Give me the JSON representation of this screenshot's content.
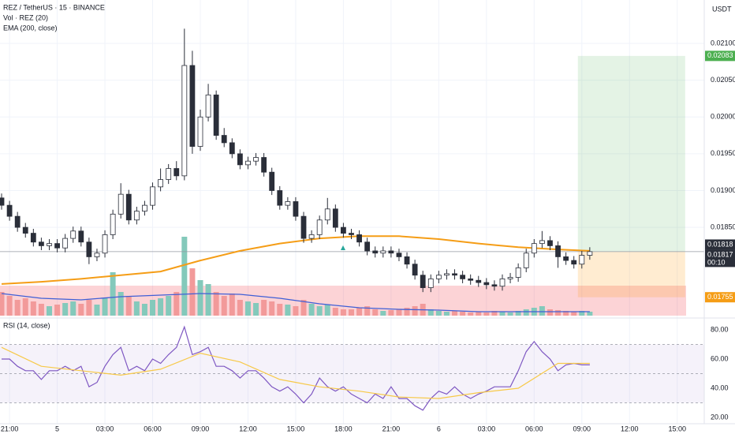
{
  "chart_data": {
    "type": "candlestick",
    "title": "REZ / TetherUS · 15 · BINANCE",
    "quote": "USDT",
    "x": [
      -0.5,
      0,
      0.5,
      1,
      1.5,
      2,
      2.5,
      3,
      3.5,
      4,
      4.5,
      5,
      5.5,
      6,
      6.5,
      7,
      7.5,
      8,
      8.5,
      9,
      9.5,
      10,
      10.5,
      11,
      11.5,
      12,
      12.5,
      13,
      13.5,
      14,
      14.5,
      15,
      15.5,
      16,
      16.5,
      17,
      17.5,
      18,
      18.5,
      19,
      19.5,
      20,
      20.5,
      21,
      21.5,
      22,
      22.5,
      23,
      23.5,
      24,
      24.5,
      25,
      25.5,
      26,
      26.5,
      27,
      27.5,
      28,
      28.5,
      29,
      29.5,
      30,
      30.5,
      31,
      31.5,
      32,
      32.5,
      33,
      33.5,
      34,
      34.5,
      35,
      35.5,
      36,
      36.5
    ],
    "open": [
      0.0189,
      0.0188,
      0.01865,
      0.0185,
      0.01842,
      0.0183,
      0.01825,
      0.01828,
      0.01822,
      0.01835,
      0.01845,
      0.0183,
      0.0181,
      0.01815,
      0.0184,
      0.01868,
      0.01895,
      0.0186,
      0.01872,
      0.0188,
      0.01905,
      0.01915,
      0.0193,
      0.0192,
      0.0207,
      0.0196,
      0.02,
      0.0203,
      0.01975,
      0.01965,
      0.0195,
      0.01935,
      0.0194,
      0.01945,
      0.01925,
      0.019,
      0.0188,
      0.01885,
      0.01865,
      0.01835,
      0.0184,
      0.0186,
      0.01875,
      0.0185,
      0.01842,
      0.0184,
      0.0183,
      0.01818,
      0.01815,
      0.01818,
      0.01815,
      0.0181,
      0.018,
      0.01785,
      0.01768,
      0.0178,
      0.01785,
      0.01787,
      0.01785,
      0.0178,
      0.01778,
      0.01775,
      0.01772,
      0.0177,
      0.0178,
      0.01782,
      0.01795,
      0.01815,
      0.01828,
      0.01832,
      0.01825,
      0.0181,
      0.01805,
      0.018,
      0.01812
    ],
    "high": [
      0.01896,
      0.01886,
      0.01871,
      0.01856,
      0.01848,
      0.01836,
      0.01834,
      0.01834,
      0.01841,
      0.01851,
      0.01851,
      0.01836,
      0.01821,
      0.01846,
      0.01874,
      0.0191,
      0.01901,
      0.01878,
      0.01886,
      0.01911,
      0.0193,
      0.01936,
      0.0194,
      0.0212,
      0.0209,
      0.0201,
      0.02045,
      0.02036,
      0.01985,
      0.01971,
      0.01956,
      0.01946,
      0.01951,
      0.01951,
      0.01931,
      0.01906,
      0.01891,
      0.01891,
      0.01871,
      0.01846,
      0.01866,
      0.0189,
      0.01881,
      0.01856,
      0.01848,
      0.01846,
      0.01836,
      0.01824,
      0.01824,
      0.01824,
      0.01821,
      0.01816,
      0.01806,
      0.01791,
      0.01786,
      0.01791,
      0.01793,
      0.01793,
      0.01791,
      0.01786,
      0.01784,
      0.01781,
      0.01778,
      0.01786,
      0.01788,
      0.01801,
      0.01821,
      0.01834,
      0.01845,
      0.01838,
      0.01831,
      0.01816,
      0.01811,
      0.01818,
      0.01823
    ],
    "low": [
      0.01874,
      0.01859,
      0.01844,
      0.01836,
      0.01824,
      0.01819,
      0.01819,
      0.01816,
      0.01816,
      0.01829,
      0.01824,
      0.018,
      0.01804,
      0.01809,
      0.01834,
      0.01862,
      0.01854,
      0.01854,
      0.01866,
      0.01874,
      0.01899,
      0.01909,
      0.01914,
      0.01914,
      0.0195,
      0.01954,
      0.01994,
      0.01969,
      0.01959,
      0.01944,
      0.01929,
      0.01929,
      0.01934,
      0.01919,
      0.01894,
      0.01874,
      0.01874,
      0.01859,
      0.01829,
      0.01829,
      0.01834,
      0.01854,
      0.01844,
      0.01836,
      0.01834,
      0.01824,
      0.01812,
      0.01809,
      0.01809,
      0.01809,
      0.01804,
      0.01794,
      0.01779,
      0.01762,
      0.01762,
      0.01774,
      0.01779,
      0.01779,
      0.01774,
      0.01772,
      0.01769,
      0.01766,
      0.01764,
      0.01764,
      0.01774,
      0.01776,
      0.01789,
      0.01809,
      0.01822,
      0.01819,
      0.01795,
      0.01799,
      0.01794,
      0.01794,
      0.01806
    ],
    "close": [
      0.0188,
      0.01865,
      0.0185,
      0.01842,
      0.0183,
      0.01825,
      0.01828,
      0.01822,
      0.01835,
      0.01845,
      0.0183,
      0.0181,
      0.01815,
      0.0184,
      0.01868,
      0.01895,
      0.0186,
      0.01872,
      0.0188,
      0.01905,
      0.01915,
      0.0193,
      0.0192,
      0.0207,
      0.0196,
      0.02,
      0.0203,
      0.01975,
      0.01965,
      0.0195,
      0.01935,
      0.0194,
      0.01945,
      0.01925,
      0.019,
      0.0188,
      0.01885,
      0.01865,
      0.01835,
      0.0184,
      0.0186,
      0.01875,
      0.0185,
      0.01842,
      0.0184,
      0.0183,
      0.01818,
      0.01815,
      0.01818,
      0.01815,
      0.0181,
      0.018,
      0.01785,
      0.01768,
      0.0178,
      0.01785,
      0.01787,
      0.01785,
      0.0178,
      0.01778,
      0.01775,
      0.01772,
      0.0177,
      0.0178,
      0.01782,
      0.01795,
      0.01815,
      0.01828,
      0.01832,
      0.01825,
      0.0181,
      0.01805,
      0.018,
      0.01812,
      0.01817
    ],
    "up_color": "#ffffff",
    "down_color": "#2a2e39",
    "xlim": [
      -0.6,
      43.7
    ],
    "xticks": [
      {
        "value": 0,
        "label": "21:00"
      },
      {
        "value": 3,
        "label": "5"
      },
      {
        "value": 6,
        "label": "03:00"
      },
      {
        "value": 9,
        "label": "06:00"
      },
      {
        "value": 12,
        "label": "09:00"
      },
      {
        "value": 15,
        "label": "12:00"
      },
      {
        "value": 18,
        "label": "15:00"
      },
      {
        "value": 21,
        "label": "18:00"
      },
      {
        "value": 24,
        "label": "21:00"
      },
      {
        "value": 27,
        "label": "6"
      },
      {
        "value": 30,
        "label": "03:00"
      },
      {
        "value": 33,
        "label": "06:00"
      },
      {
        "value": 36,
        "label": "09:00"
      },
      {
        "value": 39,
        "label": "12:00"
      },
      {
        "value": 42,
        "label": "15:00"
      }
    ],
    "ylim": [
      0.0173,
      0.02159
    ],
    "yticks": [
      {
        "value": 0.021,
        "label": "0.02100"
      },
      {
        "value": 0.0205,
        "label": "0.02050"
      },
      {
        "value": 0.02,
        "label": "0.02000"
      },
      {
        "value": 0.0195,
        "label": "0.01950"
      },
      {
        "value": 0.019,
        "label": "0.01900"
      },
      {
        "value": 0.0185,
        "label": "0.01850"
      }
    ],
    "grid": true,
    "volume": {
      "name": "Vol · REZ (20)",
      "values": [
        30,
        25,
        20,
        22,
        18,
        15,
        12,
        14,
        16,
        18,
        15,
        20,
        14,
        22,
        55,
        30,
        25,
        18,
        15,
        20,
        22,
        25,
        30,
        100,
        60,
        45,
        40,
        30,
        25,
        28,
        20,
        18,
        16,
        20,
        18,
        15,
        14,
        12,
        20,
        15,
        12,
        14,
        10,
        8,
        8,
        10,
        12,
        8,
        6,
        7,
        8,
        10,
        12,
        15,
        8,
        6,
        5,
        6,
        5,
        4,
        5,
        4,
        6,
        5,
        4,
        6,
        8,
        10,
        12,
        8,
        7,
        6,
        5,
        6,
        5
      ],
      "up_color": "#84c9bb",
      "down_color": "#f29a9a",
      "ma": {
        "x": [
          -0.5,
          2,
          4.5,
          7,
          9.5,
          12,
          14.5,
          17,
          19.5,
          22,
          24.5,
          27,
          29.5,
          32,
          34.5,
          36.5
        ],
        "values": [
          28,
          22,
          20,
          24,
          26,
          28,
          27,
          22,
          15,
          10,
          8,
          7,
          5,
          5,
          5,
          5
        ],
        "color": "#3f5fd6"
      }
    },
    "ema": {
      "name": "EMA (200, close)",
      "color": "#f59d16",
      "x": [
        -0.5,
        2,
        4.5,
        7,
        9.5,
        12,
        14.5,
        17,
        19.5,
        22,
        24.5,
        27,
        29.5,
        32,
        34.5,
        36.5
      ],
      "values": [
        0.01773,
        0.01776,
        0.0178,
        0.01785,
        0.0179,
        0.01805,
        0.01818,
        0.01828,
        0.01835,
        0.01838,
        0.01838,
        0.01834,
        0.01828,
        0.01823,
        0.0182,
        0.01818
      ],
      "last": {
        "value": 0.01818,
        "label": "0.01818"
      }
    },
    "last_price": {
      "value": 0.01817,
      "label": "0.01817",
      "countdown": "00:10"
    },
    "position": {
      "x": [
        35.75,
        42.5
      ],
      "entry": 0.01817,
      "target": {
        "value": 0.02083,
        "label": "0.02083"
      },
      "stop": {
        "value": 0.01755,
        "label": "0.01755"
      }
    },
    "rsi": {
      "name": "RSI (14, close)",
      "color": "#7e57c2",
      "values": [
        60,
        60,
        55,
        52,
        52,
        46,
        52,
        52,
        55,
        52,
        55,
        41,
        44,
        55,
        63,
        68,
        52,
        55,
        52,
        60,
        57,
        63,
        68,
        82,
        63,
        65,
        68,
        55,
        55,
        52,
        47,
        52,
        52,
        47,
        41,
        38,
        41,
        36,
        30,
        36,
        47,
        41,
        38,
        41,
        36,
        33,
        30,
        36,
        33,
        41,
        33,
        33,
        28,
        25,
        33,
        38,
        36,
        41,
        36,
        33,
        36,
        38,
        41,
        41,
        41,
        52,
        65,
        72,
        65,
        60,
        52,
        56,
        57,
        56,
        56
      ],
      "ma": {
        "x": [
          -0.5,
          2,
          4.5,
          7,
          9.5,
          12,
          14.5,
          17,
          19.5,
          22,
          24.5,
          27,
          29.5,
          32,
          34.5,
          36.5
        ],
        "values": [
          68,
          55,
          52,
          49,
          53,
          64,
          58,
          46,
          41,
          38,
          34,
          33,
          37,
          40,
          57,
          57
        ],
        "color": "#f7c948"
      },
      "ylim": [
        15.7,
        87
      ],
      "yticks": [
        {
          "value": 80,
          "label": "80.00"
        },
        {
          "value": 60,
          "label": "60.00"
        },
        {
          "value": 40,
          "label": "40.00"
        },
        {
          "value": 20,
          "label": "20.00"
        }
      ],
      "levels": [
        70,
        50,
        30
      ]
    }
  }
}
